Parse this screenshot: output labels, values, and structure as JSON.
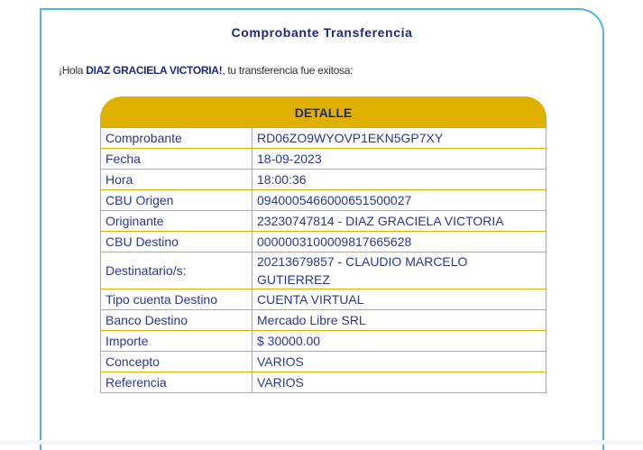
{
  "title": "Comprobante Transferencia",
  "greeting": {
    "prefix": "¡Hola ",
    "name": "DIAZ GRACIELA VICTORIA!",
    "suffix": ", tu transferencia fue exitosa:"
  },
  "detail": {
    "header": "DETALLE",
    "rows": [
      {
        "label": "Comprobante",
        "value": "RD06ZO9WYOVP1EKN5GP7XY"
      },
      {
        "label": "Fecha",
        "value": "18-09-2023"
      },
      {
        "label": "Hora",
        "value": "18:00:36"
      },
      {
        "label": "CBU Origen",
        "value": "0940005466000651500027"
      },
      {
        "label": "Originante",
        "value": "23230747814 - DIAZ GRACIELA VICTORIA"
      },
      {
        "label": "CBU Destino",
        "value": "0000003100009817665628"
      },
      {
        "label": "Destinatario/s:",
        "value": "20213679857 - CLAUDIO MARCELO GUTIERREZ"
      },
      {
        "label": "Tipo cuenta Destino",
        "value": "CUENTA VIRTUAL"
      },
      {
        "label": "Banco Destino",
        "value": "Mercado Libre SRL"
      },
      {
        "label": "Importe",
        "value": "$ 30000.00"
      },
      {
        "label": "Concepto",
        "value": "VARIOS"
      },
      {
        "label": "Referencia",
        "value": "VARIOS"
      }
    ]
  },
  "colors": {
    "border": "#4fb3e6",
    "accent": "#e0b000",
    "text": "#2b3990"
  }
}
